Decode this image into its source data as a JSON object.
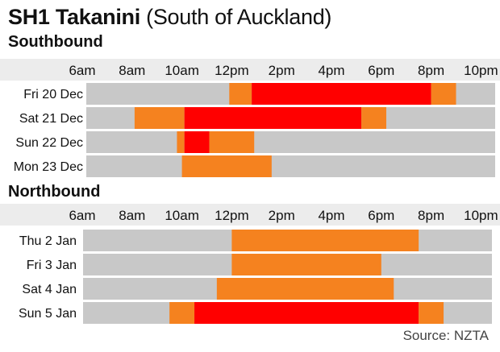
{
  "header": {
    "title_bold": "SH1 Takanini",
    "title_light": "(South of Auckland)"
  },
  "source": "Source: NZTA",
  "colors": {
    "track": "#c8c8c8",
    "band_band": "#4a4a4a",
    "moderate": "#f5821f",
    "heavy": "#ff0000"
  },
  "chart_data": [
    {
      "type": "bar",
      "title": "Southbound",
      "ticks": [
        "6am",
        "8am",
        "10am",
        "12pm",
        "2pm",
        "4pm",
        "6pm",
        "8pm",
        "10pm"
      ],
      "xlim": [
        6,
        22
      ],
      "rows": [
        {
          "label": "Fri 20 Dec",
          "segments": [
            {
              "start": 11.9,
              "end": 12.8,
              "level": "moderate"
            },
            {
              "start": 12.8,
              "end": 20.0,
              "level": "heavy"
            },
            {
              "start": 20.0,
              "end": 21.0,
              "level": "moderate"
            }
          ]
        },
        {
          "label": "Sat 21 Dec",
          "segments": [
            {
              "start": 8.1,
              "end": 10.1,
              "level": "moderate"
            },
            {
              "start": 10.1,
              "end": 17.2,
              "level": "heavy"
            },
            {
              "start": 17.2,
              "end": 18.2,
              "level": "moderate"
            }
          ]
        },
        {
          "label": "Sun 22 Dec",
          "segments": [
            {
              "start": 9.8,
              "end": 10.1,
              "level": "moderate"
            },
            {
              "start": 10.1,
              "end": 11.1,
              "level": "heavy"
            },
            {
              "start": 11.1,
              "end": 12.9,
              "level": "moderate"
            }
          ]
        },
        {
          "label": "Mon 23 Dec",
          "segments": [
            {
              "start": 10.0,
              "end": 13.6,
              "level": "moderate"
            }
          ]
        }
      ]
    },
    {
      "type": "bar",
      "title": "Northbound",
      "ticks": [
        "6am",
        "8am",
        "10am",
        "12pm",
        "2pm",
        "4pm",
        "6pm",
        "8pm",
        "10pm"
      ],
      "xlim": [
        6,
        22
      ],
      "rows": [
        {
          "label": "Thu  2 Jan",
          "segments": [
            {
              "start": 12.0,
              "end": 19.5,
              "level": "moderate"
            }
          ]
        },
        {
          "label": "Fri 3 Jan",
          "segments": [
            {
              "start": 12.0,
              "end": 18.0,
              "level": "moderate"
            }
          ]
        },
        {
          "label": "Sat 4 Jan",
          "segments": [
            {
              "start": 11.4,
              "end": 18.5,
              "level": "moderate"
            }
          ]
        },
        {
          "label": "Sun 5 Jan",
          "segments": [
            {
              "start": 9.5,
              "end": 10.5,
              "level": "moderate"
            },
            {
              "start": 10.5,
              "end": 19.5,
              "level": "heavy"
            },
            {
              "start": 19.5,
              "end": 20.5,
              "level": "moderate"
            }
          ]
        }
      ]
    }
  ]
}
